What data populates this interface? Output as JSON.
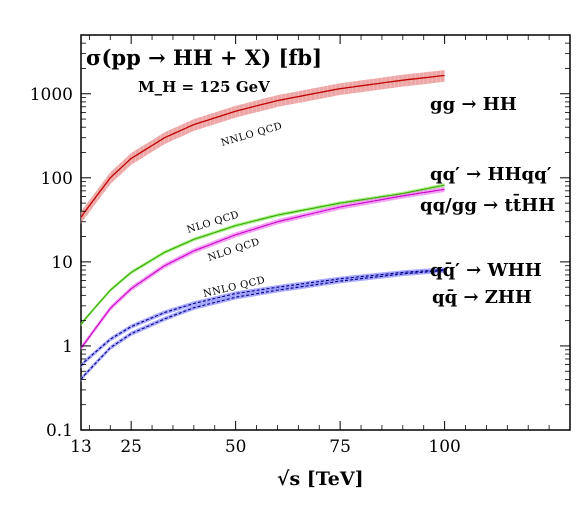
{
  "chart_data": {
    "type": "line",
    "title": "σ(pp → HH + X) [fb]",
    "subtitle": "M_H = 125 GeV",
    "xlabel": "√s [TeV]",
    "ylabel": "",
    "yscale": "log",
    "xlim": [
      13,
      130
    ],
    "ylim": [
      0.1,
      5000
    ],
    "x_ticks": [
      13,
      25,
      50,
      75,
      100
    ],
    "y_ticks": [
      {
        "value": 0.1,
        "label": "0.1"
      },
      {
        "value": 1,
        "label": "1"
      },
      {
        "value": 10,
        "label": "10"
      },
      {
        "value": 100,
        "label": "100"
      },
      {
        "value": 1000,
        "label": "1000"
      }
    ],
    "x": [
      13,
      14,
      20,
      25,
      33,
      40,
      50,
      60,
      75,
      90,
      100
    ],
    "series": [
      {
        "name": "gg → HH",
        "order": "NNLO QCD",
        "color": "#c00000",
        "band_color": "#e88a8a",
        "values": [
          34,
          40,
          100,
          170,
          300,
          430,
          620,
          830,
          1150,
          1450,
          1650
        ],
        "band": 0.16
      },
      {
        "name": "qq′ → HHqq′",
        "order": "NLO QCD",
        "color": "#3aa800",
        "band_color": "#88ee60",
        "values": [
          1.8,
          2.1,
          4.6,
          7.5,
          13,
          18.5,
          27,
          36,
          50,
          65,
          82
        ],
        "band": 0.05
      },
      {
        "name": "qq/gg → tt̄HH",
        "order": "NLO QCD",
        "color": "#cc00cc",
        "band_color": "#ee80ee",
        "values": [
          0.95,
          1.1,
          2.8,
          4.8,
          9.0,
          13.5,
          21,
          30,
          45,
          61,
          73
        ],
        "band": 0.07
      },
      {
        "name": "qq̄′ → WHH",
        "order": "NNLO QCD",
        "color": "#000080",
        "band_color": "#8888ff",
        "values": [
          0.58,
          0.66,
          1.2,
          1.7,
          2.5,
          3.2,
          4.2,
          5.0,
          6.3,
          7.5,
          8.1
        ],
        "band": 0.06
      },
      {
        "name": "qq̄ → ZHH",
        "order": "NNLO QCD",
        "color": "#000080",
        "band_color": "#8888ff",
        "values": [
          0.4,
          0.46,
          0.95,
          1.4,
          2.1,
          2.85,
          3.8,
          4.6,
          5.9,
          7.2,
          7.9
        ],
        "band": 0.06
      }
    ],
    "annotations": [
      "NNLO QCD",
      "NLO QCD",
      "NLO QCD",
      "NNLO QCD"
    ],
    "grid": false,
    "legend": "right-of-curves"
  }
}
